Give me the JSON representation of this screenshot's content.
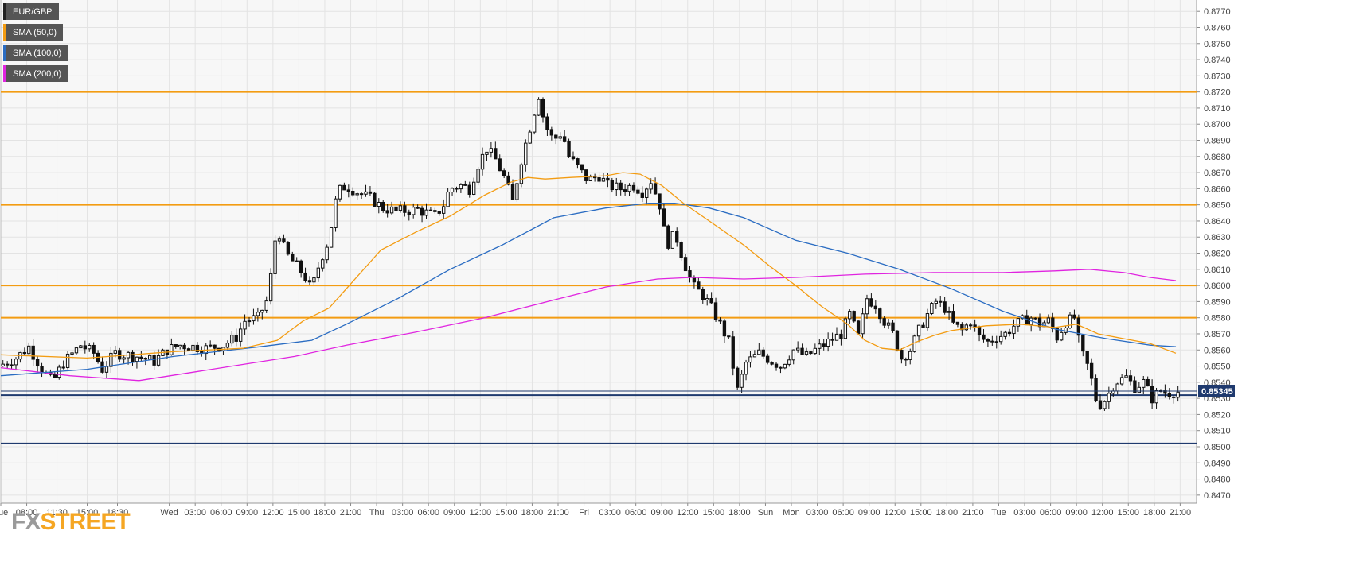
{
  "chart_data": {
    "type": "candlestick",
    "title": "",
    "xlabel": "",
    "ylabel": "",
    "ylim": [
      0.8465,
      0.8777
    ],
    "y_ticks": [
      "0.8770",
      "0.8760",
      "0.8750",
      "0.8740",
      "0.8730",
      "0.8720",
      "0.8710",
      "0.8700",
      "0.8690",
      "0.8680",
      "0.8670",
      "0.8660",
      "0.8650",
      "0.8640",
      "0.8630",
      "0.8620",
      "0.8610",
      "0.8600",
      "0.8590",
      "0.8580",
      "0.8570",
      "0.8560",
      "0.8550",
      "0.8540",
      "0.8530",
      "0.8520",
      "0.8510",
      "0.8500",
      "0.8490",
      "0.8480",
      "0.8470"
    ],
    "x_ticks": [
      {
        "label": "Tue",
        "t": 0
      },
      {
        "label": "08:00",
        "t": 3
      },
      {
        "label": "11:30",
        "t": 6.5
      },
      {
        "label": "15:00",
        "t": 10
      },
      {
        "label": "18:30",
        "t": 13.5
      },
      {
        "label": "Wed",
        "t": 19.5
      },
      {
        "label": "03:00",
        "t": 22.5
      },
      {
        "label": "06:00",
        "t": 25.5
      },
      {
        "label": "09:00",
        "t": 28.5
      },
      {
        "label": "12:00",
        "t": 31.5
      },
      {
        "label": "15:00",
        "t": 34.5
      },
      {
        "label": "18:00",
        "t": 37.5
      },
      {
        "label": "21:00",
        "t": 40.5
      },
      {
        "label": "Thu",
        "t": 43.5
      },
      {
        "label": "03:00",
        "t": 46.5
      },
      {
        "label": "06:00",
        "t": 49.5
      },
      {
        "label": "09:00",
        "t": 52.5
      },
      {
        "label": "12:00",
        "t": 55.5
      },
      {
        "label": "15:00",
        "t": 58.5
      },
      {
        "label": "18:00",
        "t": 61.5
      },
      {
        "label": "21:00",
        "t": 64.5
      },
      {
        "label": "Fri",
        "t": 67.5
      },
      {
        "label": "03:00",
        "t": 70.5
      },
      {
        "label": "06:00",
        "t": 73.5
      },
      {
        "label": "09:00",
        "t": 76.5
      },
      {
        "label": "12:00",
        "t": 79.5
      },
      {
        "label": "15:00",
        "t": 82.5
      },
      {
        "label": "18:00",
        "t": 85.5
      },
      {
        "label": "Sun",
        "t": 88.5
      },
      {
        "label": "Mon",
        "t": 91.5
      },
      {
        "label": "03:00",
        "t": 94.5
      },
      {
        "label": "06:00",
        "t": 97.5
      },
      {
        "label": "09:00",
        "t": 100.5
      },
      {
        "label": "12:00",
        "t": 103.5
      },
      {
        "label": "15:00",
        "t": 106.5
      },
      {
        "label": "18:00",
        "t": 109.5
      },
      {
        "label": "21:00",
        "t": 112.5
      },
      {
        "label": "Tue",
        "t": 115.5
      },
      {
        "label": "03:00",
        "t": 118.5
      },
      {
        "label": "06:00",
        "t": 121.5
      },
      {
        "label": "09:00",
        "t": 124.5
      },
      {
        "label": "12:00",
        "t": 127.5
      },
      {
        "label": "15:00",
        "t": 130.5
      },
      {
        "label": "18:00",
        "t": 133.5
      },
      {
        "label": "21:00",
        "t": 136.5
      }
    ],
    "t_range": [
      0,
      138.4
    ],
    "horizontal_levels": [
      {
        "value": 0.872,
        "color": "#f39c12"
      },
      {
        "value": 0.865,
        "color": "#f39c12"
      },
      {
        "value": 0.86,
        "color": "#f39c12"
      },
      {
        "value": 0.858,
        "color": "#f39c12"
      },
      {
        "value": 0.8532,
        "color": "#1f3a6e"
      },
      {
        "value": 0.8502,
        "color": "#1f3a6e"
      }
    ],
    "current_price": {
      "value": 0.85345,
      "label": "0.85345"
    },
    "legend": [
      {
        "label": "EUR/GBP",
        "color": "#222222"
      },
      {
        "label": "SMA (50,0)",
        "color": "#f39c12"
      },
      {
        "label": "SMA (100,0)",
        "color": "#2a6cc2"
      },
      {
        "label": "SMA (200,0)",
        "color": "#e024e0"
      }
    ],
    "price_path": [
      [
        0,
        0.855
      ],
      [
        2,
        0.8555
      ],
      [
        3.5,
        0.8562
      ],
      [
        5,
        0.8548
      ],
      [
        6.2,
        0.854
      ],
      [
        7.5,
        0.8552
      ],
      [
        9.5,
        0.8563
      ],
      [
        11,
        0.8558
      ],
      [
        12,
        0.8548
      ],
      [
        13.5,
        0.8558
      ],
      [
        16,
        0.8556
      ],
      [
        18,
        0.8553
      ],
      [
        19.5,
        0.856
      ],
      [
        21,
        0.8563
      ],
      [
        24,
        0.8561
      ],
      [
        26,
        0.8563
      ],
      [
        27.5,
        0.8568
      ],
      [
        28.5,
        0.8578
      ],
      [
        30,
        0.858
      ],
      [
        30.5,
        0.8585
      ],
      [
        31.2,
        0.8592
      ],
      [
        32.2,
        0.8637
      ],
      [
        33.2,
        0.862
      ],
      [
        34.5,
        0.8612
      ],
      [
        35.5,
        0.8605
      ],
      [
        36.2,
        0.8597
      ],
      [
        37.2,
        0.8615
      ],
      [
        38.2,
        0.8628
      ],
      [
        39.2,
        0.8658
      ],
      [
        40.2,
        0.8662
      ],
      [
        41.5,
        0.8658
      ],
      [
        43,
        0.8654
      ],
      [
        44.5,
        0.8648
      ],
      [
        46,
        0.8646
      ],
      [
        48.5,
        0.8647
      ],
      [
        50.5,
        0.8643
      ],
      [
        51.5,
        0.865
      ],
      [
        52.2,
        0.866
      ],
      [
        53.5,
        0.8662
      ],
      [
        54.5,
        0.866
      ],
      [
        55.5,
        0.8675
      ],
      [
        56.5,
        0.8685
      ],
      [
        57.5,
        0.8678
      ],
      [
        58.5,
        0.8667
      ],
      [
        59.5,
        0.8652
      ],
      [
        60.5,
        0.8678
      ],
      [
        61.5,
        0.8698
      ],
      [
        62.5,
        0.8718
      ],
      [
        63.2,
        0.87
      ],
      [
        64.2,
        0.869
      ],
      [
        65.2,
        0.8695
      ],
      [
        66,
        0.868
      ],
      [
        67.2,
        0.8672
      ],
      [
        68.2,
        0.8665
      ],
      [
        69.5,
        0.8668
      ],
      [
        70.5,
        0.8662
      ],
      [
        72,
        0.866
      ],
      [
        73.5,
        0.8662
      ],
      [
        74.5,
        0.8658
      ],
      [
        75.5,
        0.8665
      ],
      [
        76.5,
        0.865
      ],
      [
        77.3,
        0.8625
      ],
      [
        78.3,
        0.8632
      ],
      [
        79.3,
        0.8615
      ],
      [
        80.3,
        0.86
      ],
      [
        81.3,
        0.8595
      ],
      [
        82.3,
        0.8588
      ],
      [
        83.3,
        0.8578
      ],
      [
        84.5,
        0.8565
      ],
      [
        85.5,
        0.8535
      ],
      [
        86.5,
        0.8552
      ],
      [
        88,
        0.8558
      ],
      [
        89.5,
        0.8553
      ],
      [
        90.5,
        0.855
      ],
      [
        92,
        0.856
      ],
      [
        93.5,
        0.8556
      ],
      [
        94.5,
        0.856
      ],
      [
        96,
        0.8565
      ],
      [
        97.5,
        0.857
      ],
      [
        98.5,
        0.8582
      ],
      [
        99.5,
        0.8568
      ],
      [
        100.5,
        0.8592
      ],
      [
        101.5,
        0.8588
      ],
      [
        102.5,
        0.8578
      ],
      [
        103.5,
        0.857
      ],
      [
        104.5,
        0.8555
      ],
      [
        105.5,
        0.856
      ],
      [
        106.5,
        0.8572
      ],
      [
        107.5,
        0.8582
      ],
      [
        108.5,
        0.859
      ],
      [
        109.5,
        0.8586
      ],
      [
        110.5,
        0.8576
      ],
      [
        111.5,
        0.8572
      ],
      [
        112.5,
        0.8578
      ],
      [
        113.5,
        0.8568
      ],
      [
        114.5,
        0.8565
      ],
      [
        115.5,
        0.8568
      ],
      [
        116.5,
        0.857
      ],
      [
        117.5,
        0.8575
      ],
      [
        118.5,
        0.8578
      ],
      [
        119.5,
        0.858
      ],
      [
        120.5,
        0.8576
      ],
      [
        121.5,
        0.8578
      ],
      [
        122.5,
        0.8568
      ],
      [
        123.5,
        0.8577
      ],
      [
        124.5,
        0.858
      ],
      [
        125.2,
        0.856
      ],
      [
        126.2,
        0.8548
      ],
      [
        127.2,
        0.8525
      ],
      [
        128.2,
        0.853
      ],
      [
        129.2,
        0.854
      ],
      [
        130.5,
        0.8543
      ],
      [
        131.5,
        0.8537
      ],
      [
        132.5,
        0.854
      ],
      [
        133.5,
        0.853
      ],
      [
        134.5,
        0.8535
      ],
      [
        135.2,
        0.8533
      ],
      [
        136,
        0.8534
      ]
    ],
    "sma50": [
      [
        0,
        0.8557
      ],
      [
        10,
        0.8555
      ],
      [
        20,
        0.8559
      ],
      [
        28,
        0.8561
      ],
      [
        32,
        0.8566
      ],
      [
        35,
        0.8578
      ],
      [
        38,
        0.8586
      ],
      [
        40,
        0.8598
      ],
      [
        44,
        0.8622
      ],
      [
        48,
        0.8633
      ],
      [
        52,
        0.8643
      ],
      [
        56,
        0.8656
      ],
      [
        59,
        0.8664
      ],
      [
        61,
        0.8667
      ],
      [
        63,
        0.8666
      ],
      [
        66,
        0.8667
      ],
      [
        70,
        0.8668
      ],
      [
        72,
        0.867
      ],
      [
        74,
        0.8669
      ],
      [
        76.5,
        0.8662
      ],
      [
        79,
        0.8651
      ],
      [
        82,
        0.864
      ],
      [
        86,
        0.8625
      ],
      [
        89,
        0.8612
      ],
      [
        92,
        0.86
      ],
      [
        95,
        0.8587
      ],
      [
        98,
        0.8576
      ],
      [
        100,
        0.8566
      ],
      [
        102,
        0.8561
      ],
      [
        104,
        0.856
      ],
      [
        106,
        0.8565
      ],
      [
        108,
        0.8569
      ],
      [
        110,
        0.8572
      ],
      [
        114,
        0.8575
      ],
      [
        118,
        0.8576
      ],
      [
        122,
        0.8574
      ],
      [
        124.5,
        0.8576
      ],
      [
        127,
        0.857
      ],
      [
        130,
        0.8567
      ],
      [
        133,
        0.8564
      ],
      [
        136,
        0.8558
      ]
    ],
    "sma100": [
      [
        0,
        0.8544
      ],
      [
        10,
        0.8548
      ],
      [
        20,
        0.8556
      ],
      [
        30,
        0.8562
      ],
      [
        36,
        0.8566
      ],
      [
        40,
        0.8576
      ],
      [
        46,
        0.8592
      ],
      [
        52,
        0.861
      ],
      [
        58,
        0.8625
      ],
      [
        64,
        0.8642
      ],
      [
        70,
        0.8648
      ],
      [
        75,
        0.8651
      ],
      [
        78,
        0.8651
      ],
      [
        82,
        0.8648
      ],
      [
        86,
        0.8642
      ],
      [
        92,
        0.8628
      ],
      [
        98,
        0.862
      ],
      [
        104,
        0.861
      ],
      [
        110,
        0.8598
      ],
      [
        116,
        0.8584
      ],
      [
        122,
        0.8573
      ],
      [
        128,
        0.8567
      ],
      [
        133,
        0.8563
      ],
      [
        136,
        0.8562
      ]
    ],
    "sma200": [
      [
        0,
        0.8549
      ],
      [
        8,
        0.8544
      ],
      [
        16,
        0.8541
      ],
      [
        22,
        0.8546
      ],
      [
        28,
        0.8551
      ],
      [
        34,
        0.8556
      ],
      [
        40,
        0.8563
      ],
      [
        48,
        0.8571
      ],
      [
        56,
        0.858
      ],
      [
        64,
        0.8591
      ],
      [
        70,
        0.8599
      ],
      [
        76,
        0.8604
      ],
      [
        80,
        0.8605
      ],
      [
        86,
        0.8604
      ],
      [
        92,
        0.8605
      ],
      [
        100,
        0.8607
      ],
      [
        108,
        0.8608
      ],
      [
        116,
        0.8608
      ],
      [
        122,
        0.8609
      ],
      [
        126,
        0.861
      ],
      [
        130,
        0.8608
      ],
      [
        133,
        0.8605
      ],
      [
        136,
        0.8603
      ]
    ],
    "grid": true,
    "legend_placement": "top-left"
  },
  "logo": {
    "fx": "FX",
    "street": "STREET"
  }
}
